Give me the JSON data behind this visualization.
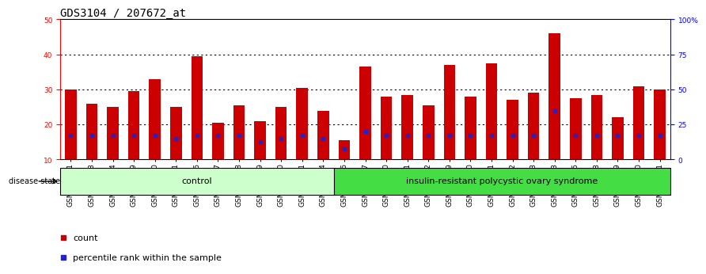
{
  "title": "GDS3104 / 207672_at",
  "samples": [
    "GSM155631",
    "GSM155643",
    "GSM155644",
    "GSM155729",
    "GSM156170",
    "GSM156171",
    "GSM156176",
    "GSM156177",
    "GSM156178",
    "GSM156179",
    "GSM156180",
    "GSM156181",
    "GSM156184",
    "GSM156186",
    "GSM156187",
    "GSM156510",
    "GSM156511",
    "GSM156512",
    "GSM156749",
    "GSM156750",
    "GSM156751",
    "GSM156752",
    "GSM156753",
    "GSM156763",
    "GSM156946",
    "GSM156948",
    "GSM156949",
    "GSM156950",
    "GSM156951"
  ],
  "count_values": [
    30,
    26,
    25,
    29.5,
    33,
    25,
    39.5,
    20.5,
    25.5,
    21,
    25,
    30.5,
    24,
    15.5,
    36.5,
    28,
    28.5,
    25.5,
    37,
    28,
    37.5,
    27,
    29,
    46,
    27.5,
    28.5,
    22,
    31,
    30
  ],
  "percentile_values": [
    17,
    17,
    17,
    17,
    17,
    16,
    17,
    17,
    17,
    15,
    16,
    17,
    16,
    13,
    18,
    17,
    17,
    17,
    17,
    17,
    17,
    17,
    17,
    24,
    17,
    17,
    17,
    17,
    17
  ],
  "control_count": 13,
  "disease_count": 16,
  "control_label": "control",
  "disease_label": "insulin-resistant polycystic ovary syndrome",
  "disease_state_label": "disease state",
  "legend_count": "count",
  "legend_percentile": "percentile rank within the sample",
  "bar_color": "#CC0000",
  "percentile_color": "#2222CC",
  "control_bg": "#CCFFCC",
  "disease_bg": "#44DD44",
  "ymin": 10,
  "ymax": 50,
  "yticks_left": [
    10,
    20,
    30,
    40,
    50
  ],
  "yticks_right": [
    0,
    25,
    50,
    75,
    100
  ],
  "ytick_right_labels": [
    "0",
    "25",
    "50",
    "75",
    "100%"
  ],
  "grid_lines": [
    20,
    30,
    40
  ],
  "bar_width": 0.55,
  "title_fontsize": 10,
  "tick_fontsize": 6.5,
  "label_fontsize": 8,
  "background_color": "#FFFFFF"
}
